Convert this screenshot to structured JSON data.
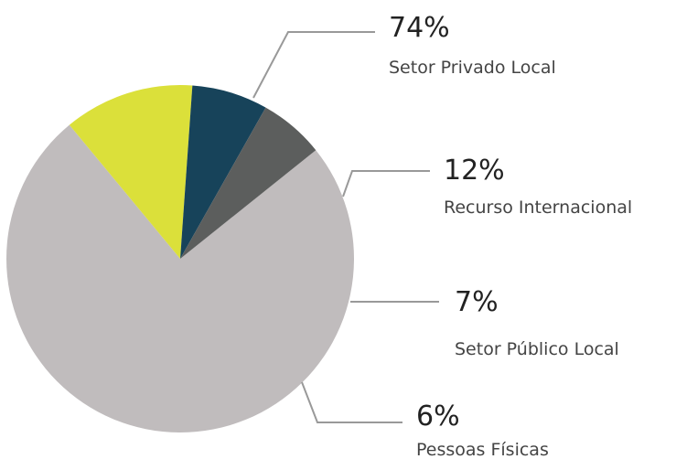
{
  "chart_data": {
    "type": "pie",
    "categories": [
      "Setor Privado Local",
      "Recurso Internacional",
      "Setor Público Local",
      "Pessoas Físicas"
    ],
    "values": [
      74,
      12,
      7,
      6
    ],
    "value_labels": [
      "74%",
      "12%",
      "7%",
      "6%"
    ],
    "colors": [
      "#c0bcbd",
      "#dbe03a",
      "#17435a",
      "#5c5e5d"
    ]
  }
}
